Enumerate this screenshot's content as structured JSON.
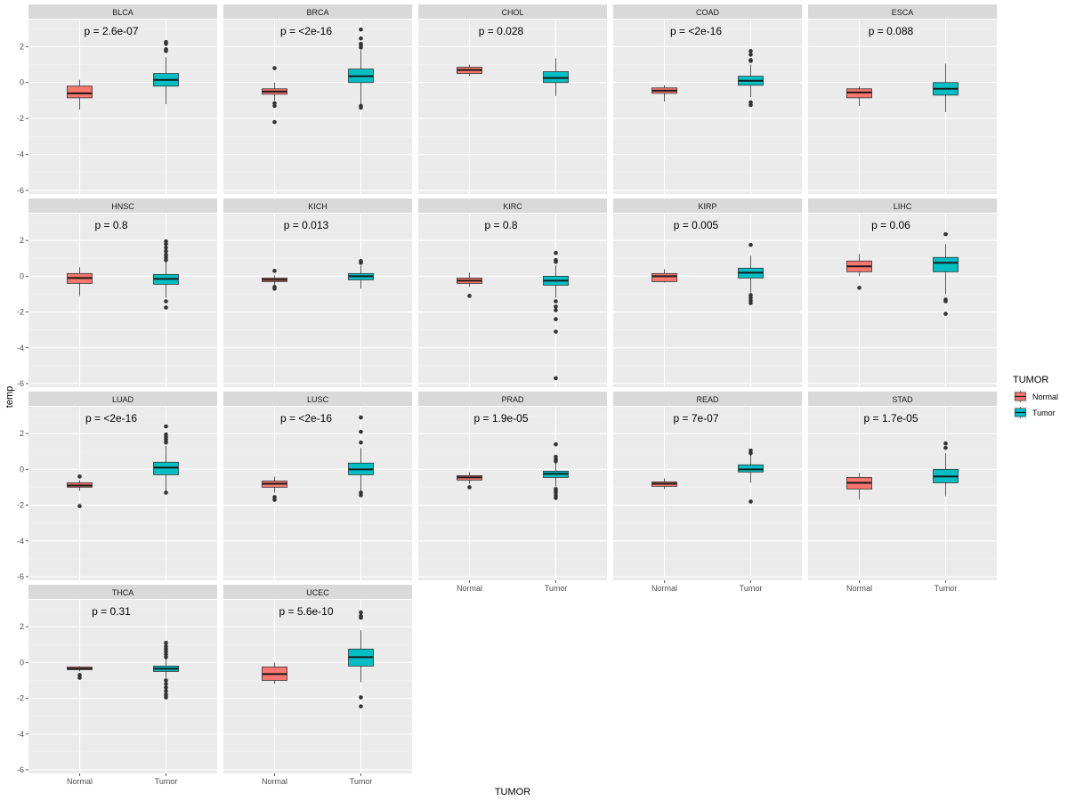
{
  "chart_data": {
    "type": "boxplot",
    "layout": "faceted",
    "xlabel": "TUMOR",
    "ylabel": "temp",
    "ylim": [
      -6.2,
      3.5
    ],
    "y_ticks": [
      2,
      0,
      -2,
      -4,
      -6
    ],
    "y_tick_labels": [
      "2",
      "0",
      "-2",
      "-4",
      "-6"
    ],
    "categories": [
      "Normal",
      "Tumor"
    ],
    "legend": {
      "title": "TUMOR",
      "position": "right",
      "entries": [
        {
          "label": "Normal",
          "color": "#f8766d"
        },
        {
          "label": "Tumor",
          "color": "#00bfc4"
        }
      ]
    },
    "colors": {
      "panel_bg": "#ebebeb",
      "grid_major": "#ffffff",
      "strip_bg": "#d9d9d9",
      "box_edge": "#333333",
      "outlier": "#333333"
    },
    "panels": [
      {
        "name": "BLCA",
        "pvalue": "p = 2.6e-07",
        "Normal": {
          "min": -1.5,
          "q1": -0.85,
          "median": -0.6,
          "q3": -0.2,
          "max": 0.15,
          "outliers": []
        },
        "Tumor": {
          "min": -1.2,
          "q1": -0.2,
          "median": 0.15,
          "q3": 0.5,
          "max": 1.4,
          "outliers": [
            1.75,
            1.85,
            2.15,
            2.25
          ]
        }
      },
      {
        "name": "BRCA",
        "pvalue": "p = <2e-16",
        "Normal": {
          "min": -1.0,
          "q1": -0.65,
          "median": -0.5,
          "q3": -0.35,
          "max": 0.0,
          "outliers": [
            0.8,
            -1.15,
            -1.3,
            -2.2
          ]
        },
        "Tumor": {
          "min": -1.2,
          "q1": 0.0,
          "median": 0.35,
          "q3": 0.75,
          "max": 1.8,
          "outliers": [
            1.95,
            2.05,
            2.15,
            2.45,
            2.95,
            -1.3,
            -1.4
          ]
        }
      },
      {
        "name": "CHOL",
        "pvalue": "p = 0.028",
        "Normal": {
          "min": 0.35,
          "q1": 0.5,
          "median": 0.7,
          "q3": 0.85,
          "max": 1.0,
          "outliers": []
        },
        "Tumor": {
          "min": -0.75,
          "q1": 0.0,
          "median": 0.25,
          "q3": 0.6,
          "max": 1.35,
          "outliers": []
        }
      },
      {
        "name": "COAD",
        "pvalue": "p = <2e-16",
        "Normal": {
          "min": -1.05,
          "q1": -0.6,
          "median": -0.45,
          "q3": -0.3,
          "max": -0.15,
          "outliers": []
        },
        "Tumor": {
          "min": -0.8,
          "q1": -0.15,
          "median": 0.1,
          "q3": 0.35,
          "max": 1.0,
          "outliers": [
            1.2,
            1.25,
            1.55,
            1.75,
            -1.1,
            -1.25
          ]
        }
      },
      {
        "name": "ESCA",
        "pvalue": "p = 0.088",
        "Normal": {
          "min": -1.3,
          "q1": -0.85,
          "median": -0.55,
          "q3": -0.35,
          "max": -0.2,
          "outliers": []
        },
        "Tumor": {
          "min": -1.65,
          "q1": -0.7,
          "median": -0.35,
          "q3": 0.0,
          "max": 1.05,
          "outliers": []
        }
      },
      {
        "name": "HNSC",
        "pvalue": "p = 0.8",
        "Normal": {
          "min": -1.1,
          "q1": -0.4,
          "median": -0.1,
          "q3": 0.15,
          "max": 0.5,
          "outliers": []
        },
        "Tumor": {
          "min": -1.2,
          "q1": -0.45,
          "median": -0.15,
          "q3": 0.1,
          "max": 0.8,
          "outliers": [
            0.9,
            1.05,
            1.2,
            1.4,
            1.6,
            1.8,
            1.95,
            -1.4,
            -1.75
          ]
        }
      },
      {
        "name": "KICH",
        "pvalue": "p = 0.013",
        "Normal": {
          "min": -0.5,
          "q1": -0.3,
          "median": -0.2,
          "q3": -0.1,
          "max": 0.05,
          "outliers": [
            0.3,
            -0.6,
            -0.7
          ]
        },
        "Tumor": {
          "min": -0.7,
          "q1": -0.2,
          "median": 0.0,
          "q3": 0.15,
          "max": 0.6,
          "outliers": [
            0.75,
            0.85
          ]
        }
      },
      {
        "name": "KIRC",
        "pvalue": "p = 0.8",
        "Normal": {
          "min": -0.6,
          "q1": -0.4,
          "median": -0.25,
          "q3": -0.1,
          "max": 0.2,
          "outliers": [
            -1.1
          ]
        },
        "Tumor": {
          "min": -1.2,
          "q1": -0.5,
          "median": -0.25,
          "q3": 0.0,
          "max": 0.6,
          "outliers": [
            0.8,
            0.9,
            1.3,
            -1.4,
            -1.7,
            -1.9,
            -2.4,
            -3.1,
            -5.7
          ]
        }
      },
      {
        "name": "KIRP",
        "pvalue": "p = 0.005",
        "Normal": {
          "min": -0.35,
          "q1": -0.3,
          "median": 0.0,
          "q3": 0.15,
          "max": 0.4,
          "outliers": []
        },
        "Tumor": {
          "min": -0.9,
          "q1": -0.1,
          "median": 0.2,
          "q3": 0.45,
          "max": 1.15,
          "outliers": [
            1.75,
            -1.05,
            -1.2,
            -1.35,
            -1.5
          ]
        }
      },
      {
        "name": "LIHC",
        "pvalue": "p = 0.06",
        "Normal": {
          "min": 0.0,
          "q1": 0.25,
          "median": 0.55,
          "q3": 0.85,
          "max": 1.25,
          "outliers": [
            -0.65
          ]
        },
        "Tumor": {
          "min": -1.0,
          "q1": 0.25,
          "median": 0.75,
          "q3": 1.05,
          "max": 1.8,
          "outliers": [
            2.35,
            -1.3,
            -1.4,
            -2.1
          ]
        }
      },
      {
        "name": "LUAD",
        "pvalue": "p = <2e-16",
        "Normal": {
          "min": -1.2,
          "q1": -1.0,
          "median": -0.9,
          "q3": -0.75,
          "max": -0.6,
          "outliers": [
            -0.4,
            -2.05
          ]
        },
        "Tumor": {
          "min": -1.2,
          "q1": -0.3,
          "median": 0.1,
          "q3": 0.4,
          "max": 1.3,
          "outliers": [
            1.5,
            1.65,
            1.8,
            1.95,
            2.4,
            -1.3
          ]
        }
      },
      {
        "name": "LUSC",
        "pvalue": "p = <2e-16",
        "Normal": {
          "min": -1.3,
          "q1": -1.0,
          "median": -0.8,
          "q3": -0.65,
          "max": -0.4,
          "outliers": [
            -1.55,
            -1.7
          ]
        },
        "Tumor": {
          "min": -1.2,
          "q1": -0.3,
          "median": 0.0,
          "q3": 0.35,
          "max": 1.2,
          "outliers": [
            1.5,
            2.1,
            2.9,
            -1.3,
            -1.45
          ]
        }
      },
      {
        "name": "PRAD",
        "pvalue": "p = 1.9e-05",
        "Normal": {
          "min": -0.8,
          "q1": -0.6,
          "median": -0.45,
          "q3": -0.35,
          "max": -0.15,
          "outliers": [
            -1.0
          ]
        },
        "Tumor": {
          "min": -0.95,
          "q1": -0.45,
          "median": -0.25,
          "q3": -0.1,
          "max": 0.35,
          "outliers": [
            0.45,
            0.55,
            0.7,
            1.4,
            -1.1,
            -1.2,
            -1.3,
            -1.45,
            -1.6
          ]
        }
      },
      {
        "name": "READ",
        "pvalue": "p = 7e-07",
        "Normal": {
          "min": -1.1,
          "q1": -0.95,
          "median": -0.8,
          "q3": -0.7,
          "max": -0.5,
          "outliers": []
        },
        "Tumor": {
          "min": -0.75,
          "q1": -0.15,
          "median": 0.0,
          "q3": 0.25,
          "max": 0.8,
          "outliers": [
            0.9,
            1.05,
            -1.8
          ]
        }
      },
      {
        "name": "STAD",
        "pvalue": "p = 1.7e-05",
        "Normal": {
          "min": -1.7,
          "q1": -1.1,
          "median": -0.75,
          "q3": -0.45,
          "max": -0.2,
          "outliers": []
        },
        "Tumor": {
          "min": -1.5,
          "q1": -0.75,
          "median": -0.4,
          "q3": 0.0,
          "max": 0.9,
          "outliers": [
            1.2,
            1.45
          ]
        }
      },
      {
        "name": "THCA",
        "pvalue": "p = 0.31",
        "Normal": {
          "min": -0.5,
          "q1": -0.4,
          "median": -0.35,
          "q3": -0.25,
          "max": -0.2,
          "outliers": [
            -0.7,
            -0.85
          ]
        },
        "Tumor": {
          "min": -0.85,
          "q1": -0.5,
          "median": -0.35,
          "q3": -0.2,
          "max": 0.2,
          "outliers": [
            0.3,
            0.45,
            0.6,
            0.75,
            0.9,
            1.1,
            -1.0,
            -1.2,
            -1.4,
            -1.6,
            -1.8,
            -1.95
          ]
        }
      },
      {
        "name": "UCEC",
        "pvalue": "p = 5.6e-10",
        "Normal": {
          "min": -1.2,
          "q1": -1.0,
          "median": -0.65,
          "q3": -0.25,
          "max": 0.0,
          "outliers": []
        },
        "Tumor": {
          "min": -1.1,
          "q1": -0.2,
          "median": 0.3,
          "q3": 0.75,
          "max": 1.8,
          "outliers": [
            2.5,
            2.6,
            2.8,
            -1.95,
            -2.45
          ]
        }
      }
    ]
  }
}
